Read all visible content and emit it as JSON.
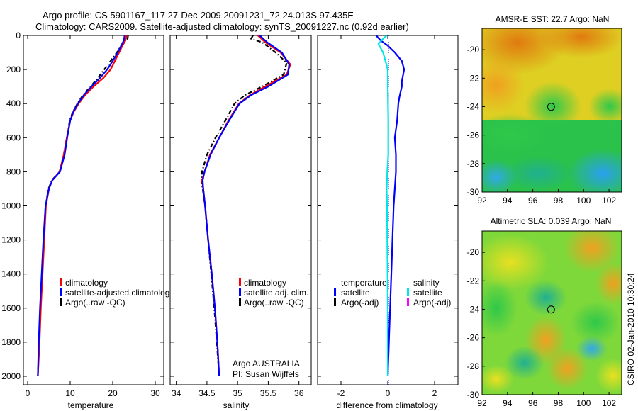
{
  "header": {
    "line1": "Argo profile: CS 5901167_117 27-Dec-2009 20091231_72 24.013S 97.435E",
    "line2": "Climatology: CARS2009. Satellite-adjusted climatology: synTS_20091227.nc (0.92d earlier)"
  },
  "footer_stamp": "CSIRO 02-Jan-2010 10:30:24",
  "colors": {
    "climatology": "#ff0000",
    "satellite": "#0000ff",
    "argo": "#000000",
    "salinity_satellite": "#00e5e5",
    "salinity_argo": "#ff00ff"
  },
  "chart_data": [
    {
      "type": "line",
      "name": "temperature-profile",
      "xlabel": "temperature",
      "ylabel": "",
      "xlim": [
        -1,
        32
      ],
      "ylim": [
        0,
        2050
      ],
      "y_reversed": true,
      "xticks": [
        0,
        10,
        20,
        30
      ],
      "yticks": [
        0,
        200,
        400,
        600,
        800,
        1000,
        1200,
        1400,
        1600,
        1800,
        2000
      ],
      "legend": {
        "position": "lower-right",
        "entries": [
          "climatology",
          "satellite-adjusted climatolog",
          "Argo(..raw -QC)"
        ]
      },
      "series": [
        {
          "name": "climatology",
          "style": "solid",
          "points": [
            [
              23.2,
              0
            ],
            [
              23,
              30
            ],
            [
              22.3,
              60
            ],
            [
              21.5,
              100
            ],
            [
              20.5,
              150
            ],
            [
              19.5,
              200
            ],
            [
              17.8,
              250
            ],
            [
              15.5,
              300
            ],
            [
              13.5,
              350
            ],
            [
              12,
              400
            ],
            [
              10.8,
              450
            ],
            [
              10,
              500
            ],
            [
              9.2,
              600
            ],
            [
              8.5,
              700
            ],
            [
              7.5,
              800
            ],
            [
              5.8,
              850
            ],
            [
              5,
              900
            ],
            [
              4.3,
              1000
            ],
            [
              3.9,
              1200
            ],
            [
              3.5,
              1400
            ],
            [
              3.1,
              1600
            ],
            [
              2.8,
              1800
            ],
            [
              2.4,
              2000
            ]
          ]
        },
        {
          "name": "satellite-adjusted climatology",
          "style": "solid",
          "points": [
            [
              22.8,
              0
            ],
            [
              22.6,
              30
            ],
            [
              22,
              60
            ],
            [
              21.2,
              100
            ],
            [
              20,
              150
            ],
            [
              18.7,
              200
            ],
            [
              17,
              250
            ],
            [
              15,
              300
            ],
            [
              13.2,
              350
            ],
            [
              11.8,
              400
            ],
            [
              10.7,
              450
            ],
            [
              10,
              500
            ],
            [
              9.3,
              600
            ],
            [
              8.7,
              700
            ],
            [
              7.6,
              800
            ],
            [
              5.8,
              850
            ],
            [
              5,
              900
            ],
            [
              4.2,
              1000
            ],
            [
              3.7,
              1200
            ],
            [
              3.3,
              1400
            ],
            [
              2.9,
              1600
            ],
            [
              2.6,
              1800
            ],
            [
              2.4,
              2000
            ]
          ]
        },
        {
          "name": "Argo(..raw -QC)",
          "style": "dash-dot",
          "points": [
            [
              23.6,
              0
            ],
            [
              23.5,
              20
            ],
            [
              22.5,
              40
            ],
            [
              21,
              100
            ],
            [
              19.5,
              150
            ],
            [
              18,
              200
            ],
            [
              16.5,
              250
            ],
            [
              14.8,
              300
            ],
            [
              13,
              350
            ],
            [
              11.7,
              400
            ],
            [
              10.6,
              450
            ],
            [
              9.9,
              500
            ],
            [
              9.2,
              600
            ],
            [
              8.5,
              700
            ],
            [
              7.5,
              800
            ],
            [
              5.7,
              850
            ],
            [
              4.9,
              900
            ],
            [
              4.2,
              1000
            ],
            [
              3.8,
              1200
            ],
            [
              3.4,
              1400
            ],
            [
              3,
              1600
            ],
            [
              2.7,
              1800
            ],
            [
              2.4,
              2000
            ]
          ]
        }
      ]
    },
    {
      "type": "line",
      "name": "salinity-profile",
      "xlabel": "salinity",
      "xlim": [
        33.9,
        36.2
      ],
      "ylim": [
        0,
        2050
      ],
      "y_reversed": true,
      "xticks": [
        34,
        34.5,
        35,
        35.5,
        36
      ],
      "legend": {
        "position": "lower-right",
        "entries": [
          "climatology",
          "satellite adj. clim.",
          "Argo(..raw -QC)"
        ]
      },
      "annotation": [
        "Argo AUSTRALIA",
        "PI: Susan Wijffels"
      ],
      "series": [
        {
          "name": "climatology",
          "style": "solid",
          "points": [
            [
              35.33,
              0
            ],
            [
              35.45,
              40
            ],
            [
              35.7,
              100
            ],
            [
              35.86,
              170
            ],
            [
              35.8,
              230
            ],
            [
              35.45,
              300
            ],
            [
              35.2,
              350
            ],
            [
              35.02,
              400
            ],
            [
              34.85,
              500
            ],
            [
              34.7,
              600
            ],
            [
              34.55,
              700
            ],
            [
              34.46,
              800
            ],
            [
              34.42,
              850
            ],
            [
              34.44,
              900
            ],
            [
              34.47,
              1000
            ],
            [
              34.52,
              1200
            ],
            [
              34.58,
              1400
            ],
            [
              34.63,
              1600
            ],
            [
              34.67,
              1800
            ],
            [
              34.7,
              2000
            ]
          ]
        },
        {
          "name": "satellite adj. clim.",
          "style": "solid",
          "points": [
            [
              35.36,
              0
            ],
            [
              35.48,
              40
            ],
            [
              35.72,
              100
            ],
            [
              35.84,
              170
            ],
            [
              35.82,
              230
            ],
            [
              35.5,
              300
            ],
            [
              35.22,
              350
            ],
            [
              35.03,
              400
            ],
            [
              34.86,
              500
            ],
            [
              34.7,
              600
            ],
            [
              34.56,
              700
            ],
            [
              34.46,
              800
            ],
            [
              34.43,
              850
            ],
            [
              34.44,
              900
            ],
            [
              34.47,
              1000
            ],
            [
              34.52,
              1200
            ],
            [
              34.58,
              1400
            ],
            [
              34.63,
              1600
            ],
            [
              34.67,
              1800
            ],
            [
              34.7,
              2000
            ]
          ]
        },
        {
          "name": "Argo(..raw -QC)",
          "style": "dash-dot",
          "points": [
            [
              35.25,
              0
            ],
            [
              35.22,
              20
            ],
            [
              35.4,
              40
            ],
            [
              35.62,
              100
            ],
            [
              35.8,
              160
            ],
            [
              35.75,
              230
            ],
            [
              35.4,
              300
            ],
            [
              35.12,
              350
            ],
            [
              34.95,
              400
            ],
            [
              34.8,
              500
            ],
            [
              34.64,
              600
            ],
            [
              34.5,
              700
            ],
            [
              34.42,
              800
            ],
            [
              34.41,
              850
            ],
            [
              34.43,
              900
            ],
            [
              34.47,
              1000
            ],
            [
              34.52,
              1200
            ],
            [
              34.57,
              1400
            ],
            [
              34.62,
              1600
            ],
            [
              34.66,
              1800
            ],
            [
              34.7,
              2000
            ]
          ]
        }
      ]
    },
    {
      "type": "line",
      "name": "difference-profile",
      "xlabel": "difference from climatology",
      "xlim": [
        -3,
        3
      ],
      "ylim": [
        0,
        2050
      ],
      "y_reversed": true,
      "xticks": [
        -2,
        0,
        2
      ],
      "legend": {
        "position": "lower-center",
        "temperature_heading": "temperature",
        "salinity_heading": "salinity",
        "temperature_entries": [
          "satellite",
          "Argo(-adj)"
        ],
        "salinity_entries": [
          "satellite",
          "Argo(-adj)"
        ]
      },
      "series": [
        {
          "name": "temperature satellite",
          "style": "solid",
          "points": [
            [
              -0.5,
              0
            ],
            [
              -0.3,
              30
            ],
            [
              0,
              60
            ],
            [
              0.3,
              100
            ],
            [
              0.6,
              150
            ],
            [
              0.7,
              200
            ],
            [
              0.6,
              270
            ],
            [
              0.6,
              300
            ],
            [
              0.5,
              360
            ],
            [
              0.45,
              400
            ],
            [
              0.4,
              500
            ],
            [
              0.3,
              600
            ],
            [
              0.35,
              700
            ],
            [
              0.35,
              800
            ],
            [
              0.3,
              900
            ],
            [
              0.25,
              1000
            ],
            [
              0.2,
              1200
            ],
            [
              0.15,
              1400
            ],
            [
              0.1,
              1600
            ],
            [
              0.05,
              1800
            ],
            [
              0,
              2000
            ]
          ]
        },
        {
          "name": "salinity satellite",
          "style": "solid",
          "points": [
            [
              -0.05,
              0
            ],
            [
              -0.2,
              20
            ],
            [
              -0.4,
              50
            ],
            [
              -0.2,
              100
            ],
            [
              -0.1,
              150
            ],
            [
              0,
              200
            ],
            [
              0,
              300
            ],
            [
              0.02,
              500
            ],
            [
              0.02,
              700
            ],
            [
              -0.02,
              800
            ],
            [
              -0.05,
              900
            ],
            [
              -0.03,
              1000
            ],
            [
              -0.02,
              1200
            ],
            [
              -0.01,
              1400
            ],
            [
              0,
              1600
            ],
            [
              0,
              1800
            ],
            [
              0,
              2000
            ]
          ]
        }
      ]
    },
    {
      "type": "heatmap",
      "name": "amsr-e-sst-map",
      "title": "AMSR-E SST: 22.7 Argo: NaN",
      "xticks": [
        92,
        94,
        96,
        98,
        100,
        102
      ],
      "yticks": [
        -20,
        -22,
        -24,
        -26,
        -28,
        -30
      ],
      "xlim": [
        92,
        103
      ],
      "ylim": [
        -30,
        -18.5
      ],
      "marker": {
        "lon": 97.435,
        "lat": -24.013
      }
    },
    {
      "type": "heatmap",
      "name": "altimetric-sla-map",
      "title": "Altimetric SLA: 0.039 Argo: NaN",
      "xticks": [
        92,
        94,
        96,
        98,
        100,
        102
      ],
      "yticks": [
        -20,
        -22,
        -24,
        -26,
        -28,
        -30
      ],
      "xlim": [
        92,
        103
      ],
      "ylim": [
        -30,
        -18.5
      ],
      "marker": {
        "lon": 97.435,
        "lat": -24.013
      }
    }
  ]
}
